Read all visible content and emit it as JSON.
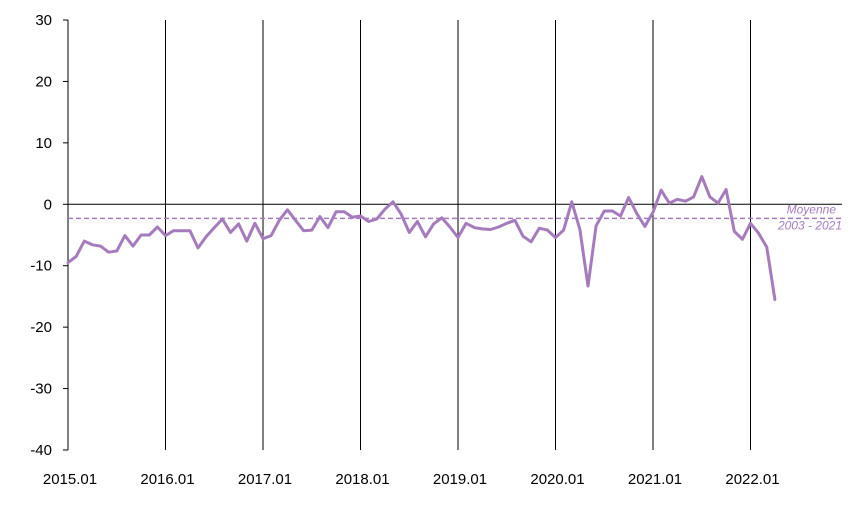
{
  "chart_data": {
    "type": "line",
    "title": "",
    "xlabel": "",
    "ylabel": "",
    "ylim": [
      -40,
      30
    ],
    "yticks": [
      30,
      20,
      10,
      0,
      -10,
      -20,
      -30,
      -40
    ],
    "xticks": [
      "2015.01",
      "2016.01",
      "2017.01",
      "2018.01",
      "2019.01",
      "2020.01",
      "2021.01",
      "2022.01"
    ],
    "grid": "vertical lines at each year start",
    "series": [
      {
        "color": "#a67bbd",
        "x_start": "2015.01",
        "frequency": "monthly",
        "values": [
          -9.5,
          -8.5,
          -6,
          -6.6,
          -6.8,
          -7.8,
          -7.6,
          -5.1,
          -6.8,
          -5,
          -5,
          -3.7,
          -5.1,
          -4.3,
          -4.3,
          -4.3,
          -7.1,
          -5.3,
          -3.8,
          -2.4,
          -4.6,
          -3.2,
          -6,
          -3.1,
          -5.6,
          -5.1,
          -2.6,
          -0.9,
          -2.6,
          -4.3,
          -4.2,
          -2,
          -3.8,
          -1.2,
          -1.2,
          -2.1,
          -1.9,
          -2.8,
          -2.4,
          -0.8,
          0.4,
          -1.6,
          -4.6,
          -2.8,
          -5.3,
          -3.2,
          -2.2,
          -3.7,
          -5.4,
          -3.1,
          -3.8,
          -4,
          -4.1,
          -3.7,
          -3.1,
          -2.6,
          -5.2,
          -6.1,
          -3.9,
          -4.2,
          -5.4,
          -4.2,
          0.4,
          -4.1,
          -13.3,
          -3.5,
          -1.1,
          -1.1,
          -1.9,
          1.1,
          -1.5,
          -3.6,
          -1.3,
          2.3,
          0.2,
          0.8,
          0.5,
          1.2,
          4.5,
          1.2,
          0.2,
          2.4,
          -4.4,
          -5.7,
          -3.1,
          -4.7,
          -7,
          -15.5
        ]
      }
    ],
    "reference_lines": [
      {
        "value": 0,
        "style": "solid",
        "color": "#000000"
      },
      {
        "value": -2.3,
        "style": "dashed",
        "color": "#a67bbd",
        "label_line1": "Moyenne",
        "label_line2": "2003 - 2021"
      }
    ]
  }
}
